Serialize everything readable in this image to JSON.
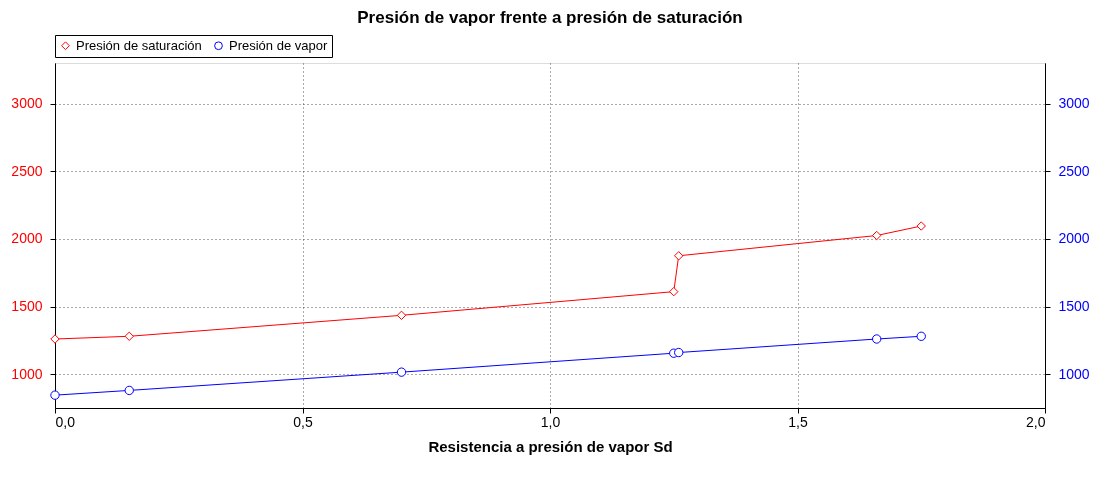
{
  "chart_data": {
    "type": "line",
    "title": "Presión de vapor frente a presión de saturación",
    "xlabel": "Resistencia a presión de vapor Sd",
    "x": [
      0.0,
      0.15,
      0.7,
      1.25,
      1.26,
      1.66,
      1.75
    ],
    "series": [
      {
        "name": "Presión de saturación",
        "color": "#ff0000",
        "marker": "diamond",
        "values": [
          1260,
          1280,
          1435,
          1610,
          1875,
          2025,
          2095
        ]
      },
      {
        "name": "Presión de vapor",
        "color": "#0000ff",
        "marker": "circle",
        "axis": "y2",
        "values": [
          845,
          880,
          1015,
          1155,
          1160,
          1260,
          1280
        ]
      }
    ],
    "xlim": [
      0,
      2
    ],
    "xticks": [
      {
        "value": 0,
        "label": "0,0"
      },
      {
        "value": 0.5,
        "label": "0,5"
      },
      {
        "value": 1,
        "label": "1,0"
      },
      {
        "value": 1.5,
        "label": "1,5"
      },
      {
        "value": 2,
        "label": "2,0"
      }
    ],
    "ylim": [
      750,
      3300
    ],
    "yticks": [
      1000,
      1500,
      2000,
      2500,
      3000
    ],
    "y2lim": [
      750,
      3300
    ],
    "y2ticks": [
      1000,
      1500,
      2000,
      2500,
      3000
    ],
    "grid": true,
    "legend": "top left",
    "line_style": "solid"
  }
}
